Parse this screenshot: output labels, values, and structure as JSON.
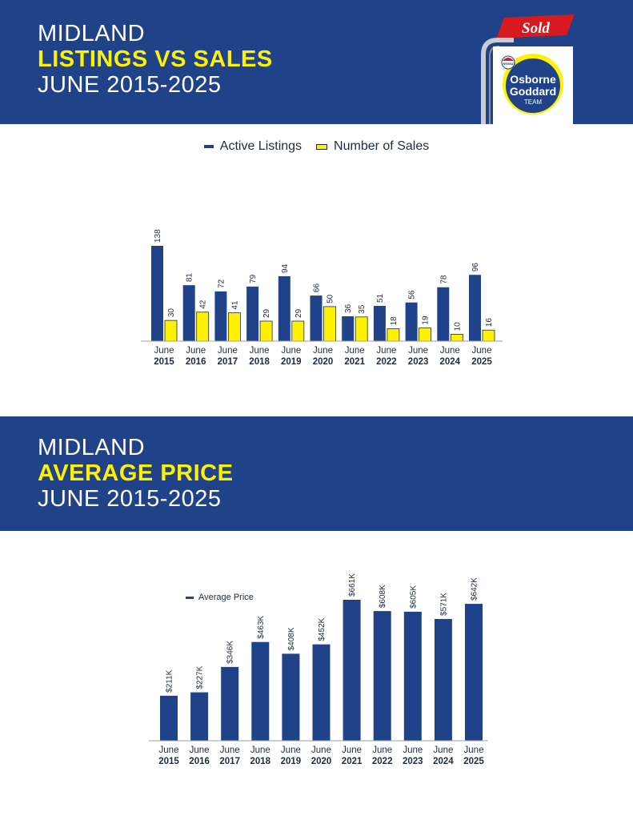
{
  "section1": {
    "title_line1": "MIDLAND",
    "title_line2": "LISTINGS VS SALES",
    "title_line3": "JUNE 2015-2025"
  },
  "section2": {
    "title_line1": "MIDLAND",
    "title_line2": "AVERAGE PRICE",
    "title_line3": "JUNE 2015-2025"
  },
  "logo": {
    "sold": "Sold",
    "remax": "RE/MAX",
    "name_line1": "Osborne",
    "name_line2": "Goddard",
    "name_line3": "TEAM"
  },
  "colors": {
    "brand_blue": "#1f4289",
    "highlight_yellow": "#fff200",
    "sold_red": "#d71920"
  },
  "chart_data": [
    {
      "type": "bar",
      "categories": [
        [
          "June",
          "2015"
        ],
        [
          "June",
          "2016"
        ],
        [
          "June",
          "2017"
        ],
        [
          "June",
          "2018"
        ],
        [
          "June",
          "2019"
        ],
        [
          "June",
          "2020"
        ],
        [
          "June",
          "2021"
        ],
        [
          "June",
          "2022"
        ],
        [
          "June",
          "2023"
        ],
        [
          "June",
          "2024"
        ],
        [
          "June",
          "2025"
        ]
      ],
      "series": [
        {
          "name": "Active Listings",
          "values": [
            138,
            81,
            72,
            79,
            94,
            66,
            36,
            51,
            56,
            78,
            96
          ],
          "color": "#1f4289"
        },
        {
          "name": "Number of Sales",
          "values": [
            30,
            42,
            41,
            29,
            29,
            50,
            35,
            18,
            19,
            10,
            16
          ],
          "color": "#fff200"
        }
      ],
      "data_labels": [
        [
          "138",
          "81",
          "72",
          "79",
          "94",
          "66",
          "36",
          "51",
          "56",
          "78",
          "96"
        ],
        [
          "30",
          "42",
          "41",
          "29",
          "29",
          "50",
          "35",
          "18",
          "19",
          "10",
          "16"
        ]
      ],
      "legend_position": "top-center",
      "grid": false
    },
    {
      "type": "bar",
      "categories": [
        [
          "June",
          "2015"
        ],
        [
          "June",
          "2016"
        ],
        [
          "June",
          "2017"
        ],
        [
          "June",
          "2018"
        ],
        [
          "June",
          "2019"
        ],
        [
          "June",
          "2020"
        ],
        [
          "June",
          "2021"
        ],
        [
          "June",
          "2022"
        ],
        [
          "June",
          "2023"
        ],
        [
          "June",
          "2024"
        ],
        [
          "June",
          "2025"
        ]
      ],
      "series": [
        {
          "name": "Average Price",
          "values": [
            211,
            227,
            346,
            463,
            408,
            452,
            661,
            608,
            605,
            571,
            642
          ],
          "color": "#1f4289"
        }
      ],
      "data_labels": [
        [
          "$211K",
          "$227K",
          "$346K",
          "$463K",
          "$408K",
          "$452K",
          "$661K",
          "$608K",
          "$605K",
          "$571K",
          "$642K"
        ]
      ],
      "legend_position": "top-left",
      "grid": false
    }
  ]
}
